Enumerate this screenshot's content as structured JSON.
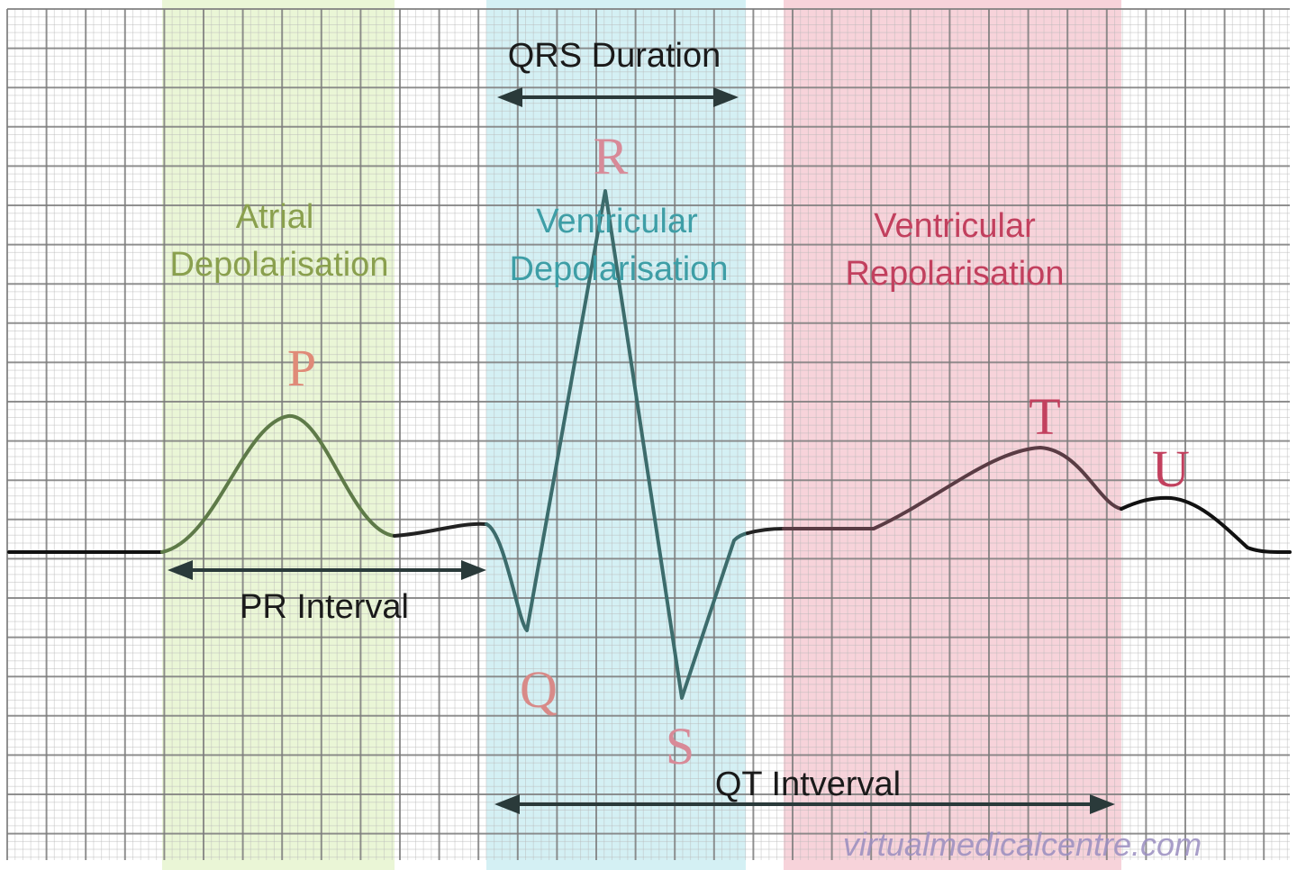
{
  "labels": {
    "qrs_duration": "QRS Duration",
    "pr_interval": "PR Interval",
    "qt_interval": "QT Intverval",
    "atrial_line1": "Atrial",
    "atrial_line2": "Depolarisation",
    "vdep_line1": "Ventricular",
    "vdep_line2": "Depolarisation",
    "vrep_line1": "Ventricular",
    "vrep_line2": "Repolarisation",
    "wave_p": "P",
    "wave_q": "Q",
    "wave_r": "R",
    "wave_s": "S",
    "wave_t": "T",
    "wave_u": "U",
    "watermark": "virtualmedicalcentre.com"
  },
  "colors": {
    "atrial_band": "#eaf6d6",
    "ventricular_depolarisation_band": "#d4f0f4",
    "ventricular_repolarisation_band": "#f7d3da",
    "atrial_text": "#8aa04e",
    "vdep_text": "#3e9ea6",
    "vrep_text": "#c2405e",
    "wave_letter_light": "#d88a88",
    "grid": "#8a8a8a",
    "trace": "#111111"
  }
}
